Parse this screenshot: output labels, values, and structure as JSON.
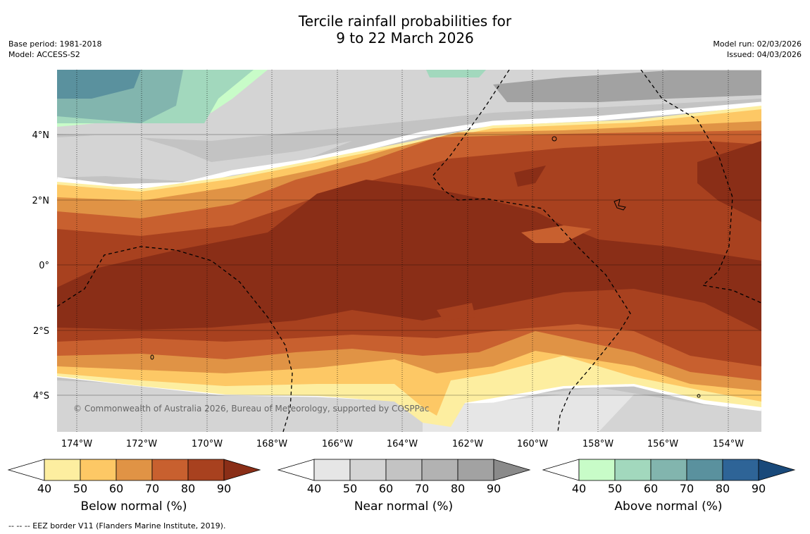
{
  "title": {
    "line1": "Tercile rainfall probabilities for",
    "line2": "9 to 22 March 2026"
  },
  "meta_left": {
    "base_period": "Base period: 1981-2018",
    "model": "Model: ACCESS-S2"
  },
  "meta_right": {
    "model_run": "Model run: 02/03/2026",
    "issued": "Issued: 04/03/2026"
  },
  "map": {
    "lon_labels": [
      "174°W",
      "172°W",
      "170°W",
      "168°W",
      "166°W",
      "164°W",
      "162°W",
      "160°W",
      "158°W",
      "156°W",
      "154°W"
    ],
    "lat_labels": [
      "4°N",
      "2°N",
      "0°",
      "2°S",
      "4°S"
    ],
    "copyright": "© Commonwealth of Australia 2026, Bureau of Meteorology, supported by COSPPac"
  },
  "legends": [
    {
      "label": "Below normal (%)",
      "ticks": [
        "40",
        "50",
        "60",
        "70",
        "80",
        "90"
      ],
      "colors": [
        "#fdeea0",
        "#fdc865",
        "#e09345",
        "#c8602f",
        "#a8411f",
        "#8a2e17"
      ]
    },
    {
      "label": "Near normal (%)",
      "ticks": [
        "40",
        "50",
        "60",
        "70",
        "80",
        "90"
      ],
      "colors": [
        "#e6e6e6",
        "#d4d4d4",
        "#c3c3c3",
        "#b2b2b2",
        "#a2a2a2",
        "#8a8a8a"
      ]
    },
    {
      "label": "Above normal (%)",
      "ticks": [
        "40",
        "50",
        "60",
        "70",
        "80",
        "90"
      ],
      "colors": [
        "#c8fcc8",
        "#a2d8bd",
        "#82b5ae",
        "#5a919e",
        "#2e6497",
        "#19497a"
      ]
    }
  ],
  "footer": "-- -- -- EEZ border V11 (Flanders Marine Institute, 2019)."
}
